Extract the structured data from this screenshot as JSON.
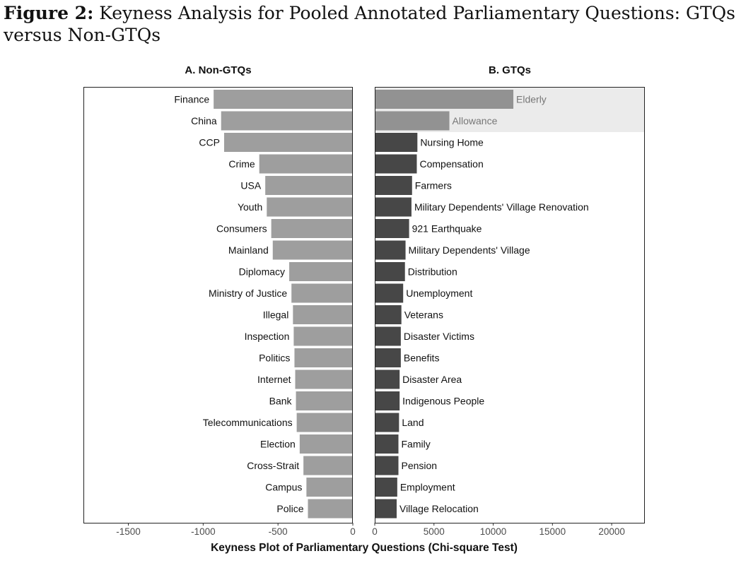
{
  "figure": {
    "label": "Figure 2:",
    "title": "Keyness Analysis for Pooled Annotated Parliamentary Questions: GTQs versus Non-GTQs"
  },
  "colors": {
    "left_bar": "#9e9e9e",
    "right_bar": "#474747",
    "highlight_bar": "#929292",
    "highlight_band": "#ebebeb",
    "highlight_text": "#777777",
    "text": "#111111",
    "tick_text": "#4d4d4d"
  },
  "chart_data": [
    {
      "type": "bar",
      "orientation": "horizontal",
      "title": "A. Non-GTQs",
      "xlim": [
        -1800,
        0
      ],
      "xticks": [
        -1500,
        -1000,
        -500,
        0
      ],
      "categories": [
        "Finance",
        "China",
        "CCP",
        "Crime",
        "USA",
        "Youth",
        "Consumers",
        "Mainland",
        "Diplomacy",
        "Ministry of Justice",
        "Illegal",
        "Inspection",
        "Politics",
        "Internet",
        "Bank",
        "Telecommunications",
        "Election",
        "Cross-Strait",
        "Campus",
        "Police"
      ],
      "values": [
        -930,
        -880,
        -860,
        -625,
        -585,
        -575,
        -545,
        -535,
        -425,
        -410,
        -400,
        -395,
        -390,
        -385,
        -380,
        -375,
        -355,
        -330,
        -310,
        -300
      ]
    },
    {
      "type": "bar",
      "orientation": "horizontal",
      "title": "B. GTQs",
      "xlim": [
        0,
        22800
      ],
      "xticks": [
        0,
        5000,
        10000,
        15000,
        20000
      ],
      "categories": [
        "Elderly",
        "Allowance",
        "Nursing Home",
        "Compensation",
        "Farmers",
        "Military Dependents' Village Renovation",
        "921 Earthquake",
        "Military Dependents' Village",
        "Distribution",
        "Unemployment",
        "Veterans",
        "Disaster Victims",
        "Benefits",
        "Disaster Area",
        "Indigenous People",
        "Land",
        "Family",
        "Pension",
        "Employment",
        "Village Relocation"
      ],
      "values": [
        11700,
        6300,
        3600,
        3550,
        3150,
        3100,
        2900,
        2600,
        2550,
        2400,
        2250,
        2200,
        2200,
        2100,
        2100,
        2050,
        2000,
        2000,
        1900,
        1850
      ],
      "highlighted": [
        "Elderly",
        "Allowance"
      ]
    }
  ],
  "xlabel": "Keyness Plot of Parliamentary Questions (Chi-square Test)"
}
